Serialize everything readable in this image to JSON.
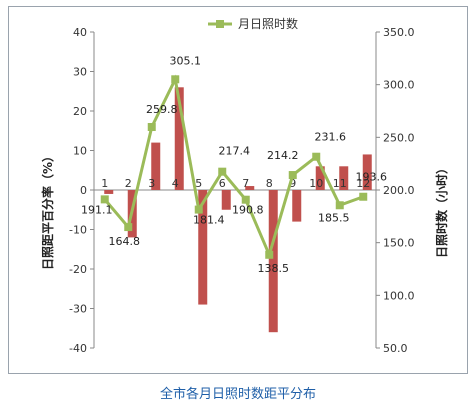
{
  "caption": "全市各月日照时数距平分布",
  "chart_data": {
    "type": "bar+line",
    "categories": [
      "1",
      "2",
      "3",
      "4",
      "5",
      "6",
      "7",
      "8",
      "9",
      "10",
      "11",
      "12"
    ],
    "series": [
      {
        "name": "",
        "type": "bar",
        "axis": "left",
        "color": "#c0504d",
        "values": [
          -1,
          -12,
          12,
          26,
          -29,
          -5,
          1,
          -36,
          -8,
          6,
          6,
          9
        ]
      },
      {
        "name": "月日照时数",
        "type": "line",
        "axis": "right",
        "color": "#9bbb59",
        "values": [
          191.1,
          164.8,
          259.8,
          305.1,
          181.4,
          217.4,
          190.8,
          138.5,
          214.2,
          231.6,
          185.5,
          193.6
        ],
        "labels": [
          "191.1",
          "164.8",
          "259.8",
          "305.1",
          "181.4",
          "217.4",
          "190.8",
          "138.5",
          "214.2",
          "231.6",
          "185.5",
          "193.6"
        ]
      }
    ],
    "y_left": {
      "label": "日照距平百分率（%）",
      "range": [
        -40,
        40
      ],
      "ticks": [
        "40",
        "30",
        "20",
        "10",
        "0",
        "-10",
        "-20",
        "-30",
        "-40"
      ]
    },
    "y_right": {
      "label": "日照时数（小时）",
      "range": [
        50,
        350
      ],
      "ticks": [
        "350.0",
        "300.0",
        "250.0",
        "200.0",
        "150.0",
        "100.0",
        "50.0"
      ]
    },
    "legend_position": "top",
    "grid": false
  }
}
